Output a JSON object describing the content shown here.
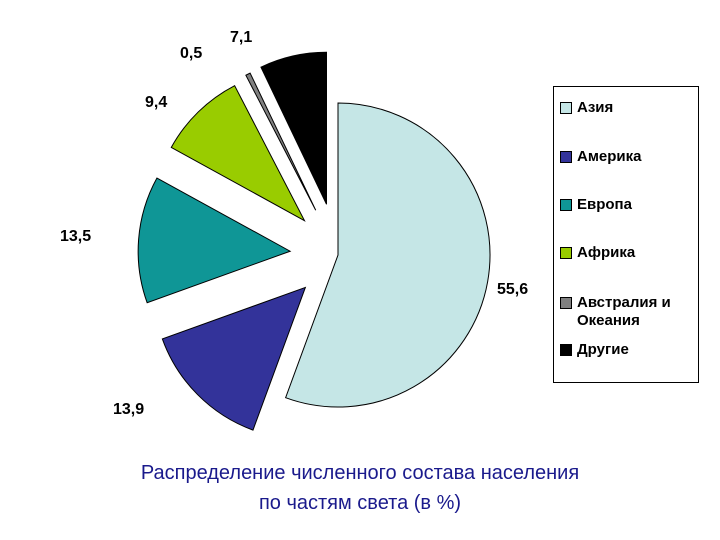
{
  "chart_data": {
    "type": "pie",
    "title_lines": [
      "Распределение численного состава населения",
      "по частям света (в %)"
    ],
    "legend_position": "right",
    "slices": [
      {
        "name": "Азия",
        "value": 55.6,
        "label": "55,6",
        "color": "#c5e6e6"
      },
      {
        "name": "Америка",
        "value": 13.9,
        "label": "13,9",
        "color": "#33339a"
      },
      {
        "name": "Европа",
        "value": 13.5,
        "label": "13,5",
        "color": "#0f9696"
      },
      {
        "name": "Африка",
        "value": 9.4,
        "label": "9,4",
        "color": "#99cc00"
      },
      {
        "name": "Австралия и Океания",
        "value": 0.5,
        "label": "0,5",
        "color": "#808080"
      },
      {
        "name": "Другие",
        "value": 7.1,
        "label": "7,1",
        "color": "#000000"
      }
    ]
  }
}
